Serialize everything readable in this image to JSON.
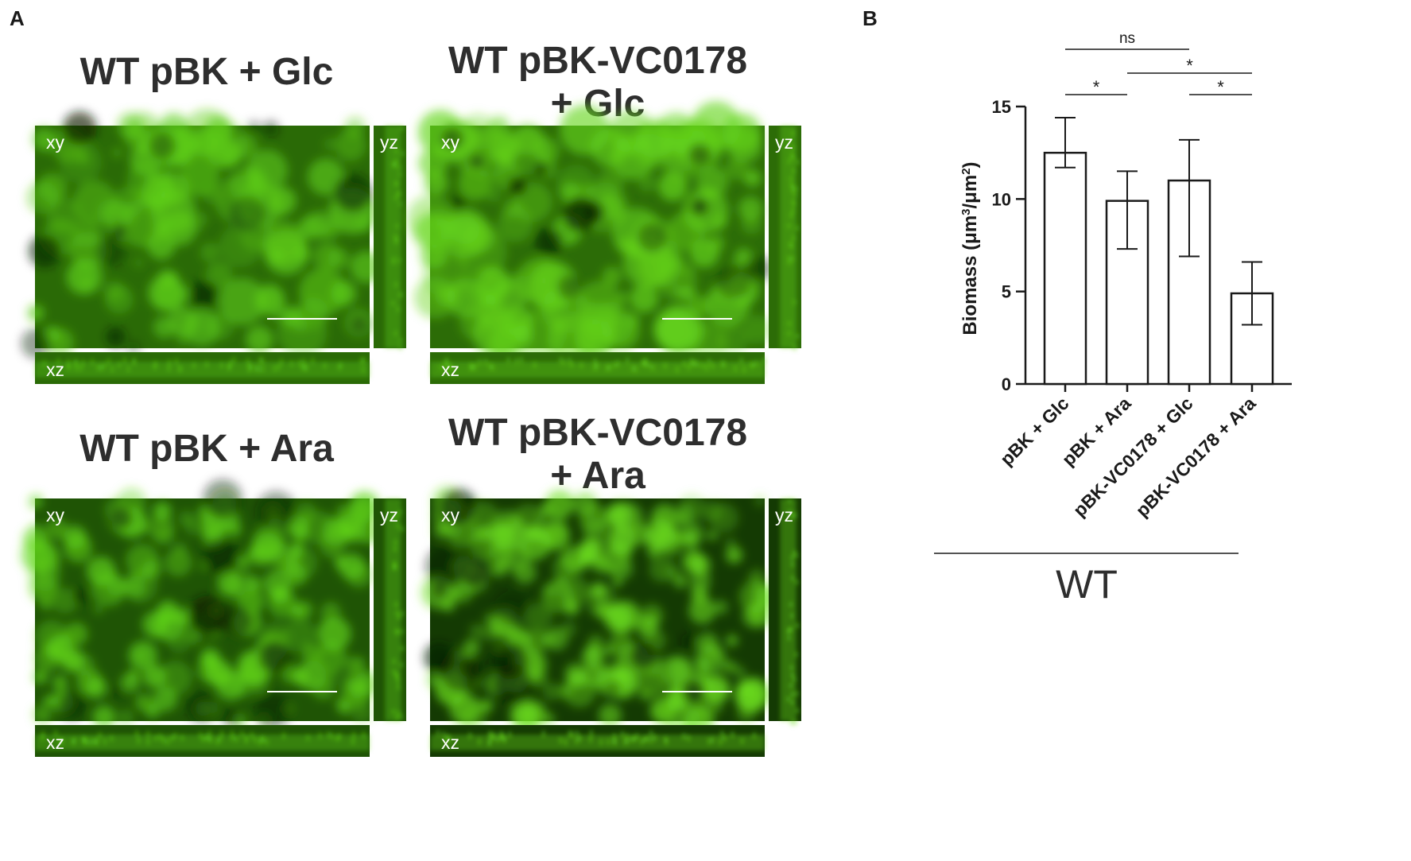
{
  "panel_a_label": "A",
  "panel_b_label": "B",
  "images": [
    {
      "title_lines": [
        "WT pBK + Glc"
      ],
      "xy_label": "xy",
      "yz_label": "yz",
      "xz_label": "xz",
      "base_color": "#2a6a06",
      "spot_color": "#5fcf1a"
    },
    {
      "title_lines": [
        "WT pBK-VC0178",
        "+ Glc"
      ],
      "xy_label": "xy",
      "yz_label": "yz",
      "xz_label": "xz",
      "base_color": "#2c6c07",
      "spot_color": "#66d61c"
    },
    {
      "title_lines": [
        "WT pBK + Ara"
      ],
      "xy_label": "xy",
      "yz_label": "yz",
      "xz_label": "xz",
      "base_color": "#1f5405",
      "spot_color": "#63d81a"
    },
    {
      "title_lines": [
        "WT pBK-VC0178",
        "+ Ara"
      ],
      "xy_label": "xy",
      "yz_label": "yz",
      "xz_label": "xz",
      "base_color": "#143a03",
      "spot_color": "#6ee21f"
    }
  ],
  "chart_data": {
    "type": "bar",
    "categories": [
      "pBK + Glc",
      "pBK + Ara",
      "pBK-VC0178 + Glc",
      "pBK-VC0178 + Ara"
    ],
    "values": [
      12.5,
      9.9,
      11.0,
      4.9
    ],
    "error_low": [
      11.7,
      7.3,
      6.9,
      3.2
    ],
    "error_high": [
      14.4,
      11.5,
      13.2,
      6.6
    ],
    "ylabel_main": "Biomass (μm",
    "ylabel_sup1": "3",
    "ylabel_mid": "/μm",
    "ylabel_sup2": "2",
    "ylabel_end": ")",
    "ylim": [
      0,
      15
    ],
    "yticks": [
      0,
      5,
      10,
      15
    ],
    "group_label": "WT",
    "significance": [
      {
        "from": 0,
        "to": 2,
        "label": "ns"
      },
      {
        "from": 1,
        "to": 3,
        "label": "*"
      },
      {
        "from": 0,
        "to": 1,
        "label": "*"
      },
      {
        "from": 2,
        "to": 3,
        "label": "*"
      }
    ],
    "bar_fill": "#ffffff",
    "bar_stroke": "#1a1a1a"
  }
}
